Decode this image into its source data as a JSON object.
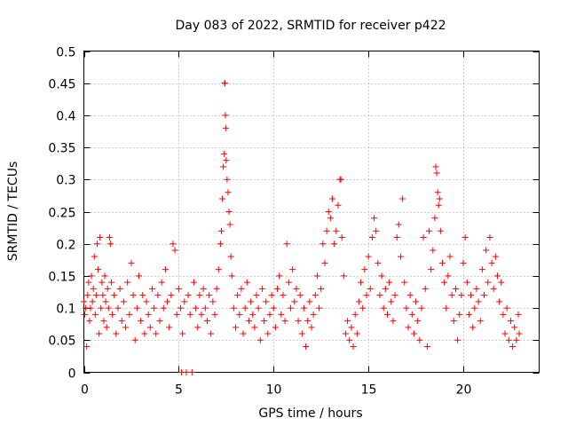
{
  "chart_data": {
    "type": "scatter",
    "title": "Day 083 of 2022, SRMTID for receiver p422",
    "xlabel": "GPS time / hours",
    "ylabel": "SRMTID / TECUs",
    "xlim": [
      0,
      24
    ],
    "ylim": [
      0,
      0.5
    ],
    "x_ticks": [
      0,
      5,
      10,
      15,
      20
    ],
    "x_tick_labels": [
      "0",
      "5",
      "10",
      "15",
      "20"
    ],
    "y_ticks": [
      0,
      0.05,
      0.1,
      0.15,
      0.2,
      0.25,
      0.3,
      0.35,
      0.4,
      0.45,
      0.5
    ],
    "y_tick_labels": [
      "0",
      "0.05",
      "0.1",
      "0.15",
      "0.2",
      "0.25",
      "0.3",
      "0.35",
      "0.4",
      "0.45",
      "0.5"
    ],
    "grid": true,
    "marker": "+",
    "colors": {
      "points": "#ff0000",
      "grid": "#a0a0a0",
      "axes": "#000000"
    },
    "series": [
      {
        "name": "SRMTID",
        "points": [
          [
            0.0,
            0.11
          ],
          [
            0.05,
            0.09
          ],
          [
            0.1,
            0.1
          ],
          [
            0.15,
            0.04
          ],
          [
            0.2,
            0.12
          ],
          [
            0.25,
            0.14
          ],
          [
            0.3,
            0.08
          ],
          [
            0.35,
            0.1
          ],
          [
            0.4,
            0.15
          ],
          [
            0.45,
            0.11
          ],
          [
            0.5,
            0.13
          ],
          [
            0.55,
            0.18
          ],
          [
            0.6,
            0.09
          ],
          [
            0.65,
            0.12
          ],
          [
            0.7,
            0.2
          ],
          [
            0.75,
            0.16
          ],
          [
            0.8,
            0.06
          ],
          [
            0.85,
            0.21
          ],
          [
            0.9,
            0.1
          ],
          [
            0.95,
            0.14
          ],
          [
            1.0,
            0.12
          ],
          [
            1.05,
            0.08
          ],
          [
            1.1,
            0.15
          ],
          [
            1.15,
            0.11
          ],
          [
            1.2,
            0.07
          ],
          [
            1.25,
            0.13
          ],
          [
            1.3,
            0.1
          ],
          [
            1.35,
            0.21
          ],
          [
            1.4,
            0.2
          ],
          [
            1.45,
            0.14
          ],
          [
            1.5,
            0.09
          ],
          [
            1.6,
            0.12
          ],
          [
            1.7,
            0.06
          ],
          [
            1.8,
            0.1
          ],
          [
            1.9,
            0.13
          ],
          [
            2.0,
            0.08
          ],
          [
            2.1,
            0.11
          ],
          [
            2.2,
            0.07
          ],
          [
            2.3,
            0.14
          ],
          [
            2.4,
            0.09
          ],
          [
            2.5,
            0.17
          ],
          [
            2.6,
            0.12
          ],
          [
            2.7,
            0.05
          ],
          [
            2.8,
            0.1
          ],
          [
            2.9,
            0.15
          ],
          [
            3.0,
            0.08
          ],
          [
            3.1,
            0.12
          ],
          [
            3.2,
            0.06
          ],
          [
            3.3,
            0.11
          ],
          [
            3.4,
            0.09
          ],
          [
            3.5,
            0.07
          ],
          [
            3.6,
            0.13
          ],
          [
            3.7,
            0.1
          ],
          [
            3.8,
            0.06
          ],
          [
            3.9,
            0.12
          ],
          [
            4.0,
            0.08
          ],
          [
            4.1,
            0.14
          ],
          [
            4.2,
            0.1
          ],
          [
            4.3,
            0.16
          ],
          [
            4.4,
            0.11
          ],
          [
            4.5,
            0.07
          ],
          [
            4.6,
            0.12
          ],
          [
            4.7,
            0.2
          ],
          [
            4.8,
            0.19
          ],
          [
            4.9,
            0.09
          ],
          [
            5.0,
            0.13
          ],
          [
            5.1,
            0.1
          ],
          [
            5.15,
            0.0
          ],
          [
            5.2,
            0.06
          ],
          [
            5.3,
            0.11
          ],
          [
            5.4,
            0.0
          ],
          [
            5.5,
            0.12
          ],
          [
            5.6,
            0.09
          ],
          [
            5.7,
            0.0
          ],
          [
            5.8,
            0.14
          ],
          [
            5.9,
            0.1
          ],
          [
            6.0,
            0.07
          ],
          [
            6.1,
            0.12
          ],
          [
            6.2,
            0.09
          ],
          [
            6.3,
            0.13
          ],
          [
            6.4,
            0.1
          ],
          [
            6.5,
            0.08
          ],
          [
            6.6,
            0.12
          ],
          [
            6.7,
            0.06
          ],
          [
            6.8,
            0.11
          ],
          [
            6.9,
            0.09
          ],
          [
            7.0,
            0.13
          ],
          [
            7.1,
            0.16
          ],
          [
            7.2,
            0.2
          ],
          [
            7.25,
            0.22
          ],
          [
            7.3,
            0.27
          ],
          [
            7.35,
            0.32
          ],
          [
            7.4,
            0.34
          ],
          [
            7.42,
            0.45
          ],
          [
            7.44,
            0.45
          ],
          [
            7.46,
            0.4
          ],
          [
            7.48,
            0.38
          ],
          [
            7.5,
            0.33
          ],
          [
            7.55,
            0.3
          ],
          [
            7.6,
            0.28
          ],
          [
            7.65,
            0.25
          ],
          [
            7.7,
            0.23
          ],
          [
            7.75,
            0.18
          ],
          [
            7.8,
            0.15
          ],
          [
            7.9,
            0.1
          ],
          [
            8.0,
            0.07
          ],
          [
            8.1,
            0.12
          ],
          [
            8.2,
            0.09
          ],
          [
            8.3,
            0.13
          ],
          [
            8.4,
            0.06
          ],
          [
            8.5,
            0.1
          ],
          [
            8.6,
            0.14
          ],
          [
            8.7,
            0.08
          ],
          [
            8.8,
            0.11
          ],
          [
            8.9,
            0.09
          ],
          [
            9.0,
            0.07
          ],
          [
            9.1,
            0.12
          ],
          [
            9.2,
            0.1
          ],
          [
            9.3,
            0.05
          ],
          [
            9.4,
            0.13
          ],
          [
            9.5,
            0.08
          ],
          [
            9.6,
            0.11
          ],
          [
            9.7,
            0.06
          ],
          [
            9.8,
            0.09
          ],
          [
            9.9,
            0.12
          ],
          [
            10.0,
            0.1
          ],
          [
            10.1,
            0.07
          ],
          [
            10.2,
            0.13
          ],
          [
            10.3,
            0.15
          ],
          [
            10.4,
            0.09
          ],
          [
            10.5,
            0.12
          ],
          [
            10.6,
            0.08
          ],
          [
            10.7,
            0.2
          ],
          [
            10.8,
            0.14
          ],
          [
            10.9,
            0.1
          ],
          [
            11.0,
            0.16
          ],
          [
            11.1,
            0.11
          ],
          [
            11.2,
            0.13
          ],
          [
            11.3,
            0.08
          ],
          [
            11.4,
            0.12
          ],
          [
            11.5,
            0.06
          ],
          [
            11.6,
            0.1
          ],
          [
            11.7,
            0.04
          ],
          [
            11.8,
            0.08
          ],
          [
            11.9,
            0.11
          ],
          [
            12.0,
            0.07
          ],
          [
            12.1,
            0.09
          ],
          [
            12.2,
            0.12
          ],
          [
            12.3,
            0.15
          ],
          [
            12.4,
            0.1
          ],
          [
            12.5,
            0.13
          ],
          [
            12.6,
            0.2
          ],
          [
            12.7,
            0.17
          ],
          [
            12.8,
            0.22
          ],
          [
            12.9,
            0.25
          ],
          [
            13.0,
            0.24
          ],
          [
            13.1,
            0.27
          ],
          [
            13.2,
            0.2
          ],
          [
            13.3,
            0.22
          ],
          [
            13.4,
            0.26
          ],
          [
            13.5,
            0.3
          ],
          [
            13.55,
            0.3
          ],
          [
            13.6,
            0.21
          ],
          [
            13.7,
            0.15
          ],
          [
            13.8,
            0.06
          ],
          [
            13.9,
            0.08
          ],
          [
            14.0,
            0.05
          ],
          [
            14.1,
            0.07
          ],
          [
            14.2,
            0.04
          ],
          [
            14.3,
            0.09
          ],
          [
            14.4,
            0.06
          ],
          [
            14.5,
            0.11
          ],
          [
            14.6,
            0.14
          ],
          [
            14.7,
            0.1
          ],
          [
            14.8,
            0.16
          ],
          [
            14.9,
            0.12
          ],
          [
            15.0,
            0.18
          ],
          [
            15.1,
            0.13
          ],
          [
            15.2,
            0.21
          ],
          [
            15.3,
            0.24
          ],
          [
            15.4,
            0.22
          ],
          [
            15.5,
            0.17
          ],
          [
            15.6,
            0.12
          ],
          [
            15.7,
            0.15
          ],
          [
            15.8,
            0.1
          ],
          [
            15.9,
            0.13
          ],
          [
            16.0,
            0.09
          ],
          [
            16.1,
            0.14
          ],
          [
            16.2,
            0.11
          ],
          [
            16.3,
            0.08
          ],
          [
            16.4,
            0.12
          ],
          [
            16.5,
            0.21
          ],
          [
            16.6,
            0.23
          ],
          [
            16.7,
            0.18
          ],
          [
            16.8,
            0.27
          ],
          [
            16.9,
            0.14
          ],
          [
            17.0,
            0.1
          ],
          [
            17.1,
            0.07
          ],
          [
            17.2,
            0.12
          ],
          [
            17.3,
            0.09
          ],
          [
            17.4,
            0.06
          ],
          [
            17.5,
            0.11
          ],
          [
            17.6,
            0.08
          ],
          [
            17.7,
            0.05
          ],
          [
            17.8,
            0.1
          ],
          [
            17.9,
            0.21
          ],
          [
            18.0,
            0.13
          ],
          [
            18.1,
            0.04
          ],
          [
            18.2,
            0.22
          ],
          [
            18.3,
            0.16
          ],
          [
            18.4,
            0.19
          ],
          [
            18.5,
            0.24
          ],
          [
            18.55,
            0.32
          ],
          [
            18.6,
            0.31
          ],
          [
            18.65,
            0.28
          ],
          [
            18.7,
            0.26
          ],
          [
            18.75,
            0.27
          ],
          [
            18.8,
            0.22
          ],
          [
            18.9,
            0.17
          ],
          [
            19.0,
            0.14
          ],
          [
            19.1,
            0.1
          ],
          [
            19.2,
            0.15
          ],
          [
            19.3,
            0.18
          ],
          [
            19.4,
            0.12
          ],
          [
            19.5,
            0.08
          ],
          [
            19.6,
            0.13
          ],
          [
            19.7,
            0.05
          ],
          [
            19.8,
            0.09
          ],
          [
            19.9,
            0.12
          ],
          [
            20.0,
            0.17
          ],
          [
            20.1,
            0.21
          ],
          [
            20.2,
            0.14
          ],
          [
            20.3,
            0.09
          ],
          [
            20.4,
            0.12
          ],
          [
            20.5,
            0.07
          ],
          [
            20.6,
            0.1
          ],
          [
            20.7,
            0.13
          ],
          [
            20.8,
            0.11
          ],
          [
            20.9,
            0.08
          ],
          [
            21.0,
            0.16
          ],
          [
            21.1,
            0.12
          ],
          [
            21.2,
            0.19
          ],
          [
            21.3,
            0.14
          ],
          [
            21.4,
            0.21
          ],
          [
            21.5,
            0.17
          ],
          [
            21.6,
            0.13
          ],
          [
            21.7,
            0.18
          ],
          [
            21.8,
            0.15
          ],
          [
            21.9,
            0.11
          ],
          [
            22.0,
            0.14
          ],
          [
            22.1,
            0.09
          ],
          [
            22.2,
            0.06
          ],
          [
            22.3,
            0.1
          ],
          [
            22.4,
            0.05
          ],
          [
            22.5,
            0.08
          ],
          [
            22.6,
            0.04
          ],
          [
            22.7,
            0.07
          ],
          [
            22.8,
            0.05
          ],
          [
            22.9,
            0.09
          ],
          [
            22.95,
            0.06
          ]
        ]
      }
    ]
  }
}
